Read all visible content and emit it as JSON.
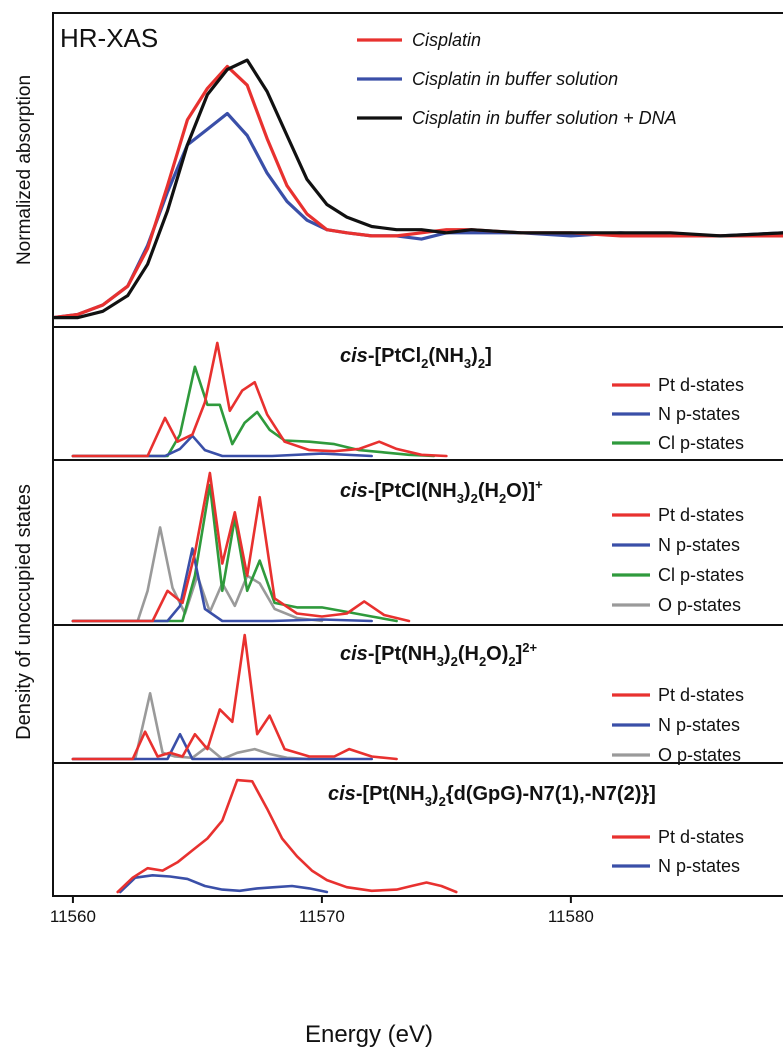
{
  "chart_data": [
    {
      "type": "line",
      "panel": "top",
      "title": "HR-XAS",
      "ylabel": "Normalized absorption",
      "xlim": [
        11559.2,
        11588.6
      ],
      "ylim": [
        0,
        1.0
      ],
      "legend_position": "top-right",
      "series": [
        {
          "name": "Cisplatin",
          "color": "#e8312f",
          "italic": true,
          "x": [
            11559.2,
            11560.2,
            11561.2,
            11562.2,
            11563.0,
            11563.8,
            11564.6,
            11565.4,
            11566.2,
            11567.0,
            11567.8,
            11568.6,
            11569.4,
            11570.2,
            11571.0,
            11572.0,
            11573.0,
            11574.0,
            11575.0,
            11576.0,
            11578.0,
            11580.0,
            11582.0,
            11584.0,
            11586.0,
            11588.6
          ],
          "y": [
            0.03,
            0.04,
            0.07,
            0.13,
            0.25,
            0.45,
            0.66,
            0.76,
            0.83,
            0.77,
            0.6,
            0.45,
            0.36,
            0.31,
            0.3,
            0.29,
            0.29,
            0.3,
            0.31,
            0.31,
            0.3,
            0.3,
            0.29,
            0.29,
            0.29,
            0.29
          ]
        },
        {
          "name": "Cisplatin in buffer solution",
          "color": "#3a4fa8",
          "italic": true,
          "x": [
            11559.2,
            11560.2,
            11561.2,
            11562.2,
            11563.0,
            11563.8,
            11564.6,
            11565.4,
            11566.2,
            11567.0,
            11567.8,
            11568.6,
            11569.4,
            11570.2,
            11571.0,
            11572.0,
            11573.0,
            11574.0,
            11575.0,
            11576.0,
            11578.0,
            11580.0,
            11582.0,
            11584.0,
            11586.0,
            11588.6
          ],
          "y": [
            0.03,
            0.04,
            0.07,
            0.13,
            0.26,
            0.43,
            0.58,
            0.63,
            0.68,
            0.61,
            0.49,
            0.4,
            0.34,
            0.31,
            0.3,
            0.29,
            0.29,
            0.28,
            0.3,
            0.3,
            0.3,
            0.29,
            0.3,
            0.29,
            0.29,
            0.3
          ]
        },
        {
          "name": "Cisplatin in buffer solution + DNA",
          "color": "#111111",
          "italic": true,
          "x": [
            11559.2,
            11560.2,
            11561.2,
            11562.2,
            11563.0,
            11563.8,
            11564.6,
            11565.4,
            11566.2,
            11567.0,
            11567.8,
            11568.6,
            11569.4,
            11570.2,
            11571.0,
            11572.0,
            11573.0,
            11574.0,
            11575.0,
            11576.0,
            11578.0,
            11580.0,
            11582.0,
            11584.0,
            11586.0,
            11588.6
          ],
          "y": [
            0.03,
            0.03,
            0.05,
            0.1,
            0.2,
            0.37,
            0.58,
            0.74,
            0.82,
            0.85,
            0.75,
            0.61,
            0.47,
            0.39,
            0.35,
            0.32,
            0.31,
            0.31,
            0.3,
            0.31,
            0.3,
            0.3,
            0.3,
            0.3,
            0.29,
            0.3
          ]
        }
      ]
    },
    {
      "type": "line",
      "panel": "dos-1",
      "title_parts": [
        [
          "cis",
          "i"
        ],
        [
          "-[PtCl",
          ""
        ],
        [
          "2",
          "sub"
        ],
        [
          "(NH",
          ""
        ],
        [
          "3",
          "sub"
        ],
        [
          ")",
          ""
        ],
        [
          "2",
          "sub"
        ],
        [
          "]",
          ""
        ]
      ],
      "xlim": [
        11559.2,
        11588.6
      ],
      "ylim": [
        0,
        1.0
      ],
      "series": [
        {
          "name": "Pt d-states",
          "color": "#e8312f",
          "x": [
            11560,
            11563,
            11563.7,
            11564.2,
            11564.8,
            11565.3,
            11565.8,
            11566.3,
            11566.8,
            11567.3,
            11567.8,
            11568.5,
            11569.5,
            11570.5,
            11571.5,
            11572.3,
            11573.0,
            11574.0,
            11575.0
          ],
          "y": [
            0,
            0,
            0.32,
            0.12,
            0.18,
            0.45,
            0.95,
            0.38,
            0.55,
            0.62,
            0.35,
            0.12,
            0.05,
            0.04,
            0.06,
            0.12,
            0.06,
            0.01,
            0
          ]
        },
        {
          "name": "N p-states",
          "color": "#3a4fa8",
          "x": [
            11560,
            11563.7,
            11564.3,
            11564.8,
            11565.3,
            11566.0,
            11568.0,
            11570.0,
            11572.0
          ],
          "y": [
            0,
            0,
            0.06,
            0.17,
            0.05,
            0.0,
            0.0,
            0.02,
            0
          ]
        },
        {
          "name": "Cl p-states",
          "color": "#2f9a3c",
          "x": [
            11560,
            11563.8,
            11564.3,
            11564.9,
            11565.4,
            11565.9,
            11566.4,
            11566.9,
            11567.4,
            11567.9,
            11568.5,
            11569.5,
            11570.5,
            11571.5,
            11572.5,
            11573.5,
            11574.5
          ],
          "y": [
            0,
            0,
            0.18,
            0.75,
            0.43,
            0.43,
            0.1,
            0.28,
            0.37,
            0.22,
            0.13,
            0.12,
            0.1,
            0.05,
            0.03,
            0.01,
            0
          ]
        }
      ]
    },
    {
      "type": "line",
      "panel": "dos-2",
      "title_parts": [
        [
          "cis",
          "i"
        ],
        [
          "-[PtCl(NH",
          ""
        ],
        [
          "3",
          "sub"
        ],
        [
          ")",
          ""
        ],
        [
          "2",
          "sub"
        ],
        [
          "(H",
          ""
        ],
        [
          "2",
          "sub"
        ],
        [
          "O)]",
          ""
        ],
        [
          "+",
          "sup"
        ]
      ],
      "xlim": [
        11559.2,
        11588.6
      ],
      "ylim": [
        0,
        1.0
      ],
      "series": [
        {
          "name": "Pt d-states",
          "color": "#e8312f",
          "x": [
            11560,
            11563.2,
            11563.8,
            11564.4,
            11564.9,
            11565.5,
            11566.0,
            11566.5,
            11567.0,
            11567.5,
            11568.1,
            11569.0,
            11570.0,
            11571.0,
            11571.7,
            11572.5,
            11573.5
          ],
          "y": [
            0,
            0,
            0.2,
            0.12,
            0.45,
            0.98,
            0.38,
            0.72,
            0.3,
            0.82,
            0.15,
            0.05,
            0.03,
            0.05,
            0.13,
            0.04,
            0
          ]
        },
        {
          "name": "N p-states",
          "color": "#3a4fa8",
          "x": [
            11560,
            11563.8,
            11564.3,
            11564.8,
            11565.3,
            11566.0,
            11568.0,
            11570.0,
            11572.0
          ],
          "y": [
            0,
            0,
            0.1,
            0.48,
            0.08,
            0.0,
            0.0,
            0.01,
            0
          ]
        },
        {
          "name": "Cl p-states",
          "color": "#2f9a3c",
          "x": [
            11560,
            11564.4,
            11564.9,
            11565.5,
            11566.0,
            11566.5,
            11567.0,
            11567.5,
            11568.1,
            11569.0,
            11570.0,
            11571.0,
            11572.0,
            11573.0
          ],
          "y": [
            0,
            0,
            0.3,
            0.9,
            0.2,
            0.68,
            0.2,
            0.4,
            0.12,
            0.09,
            0.09,
            0.06,
            0.03,
            0
          ]
        },
        {
          "name": "O p-states",
          "color": "#9a9a9a",
          "x": [
            11560,
            11562.6,
            11563.0,
            11563.5,
            11564.0,
            11564.5,
            11565.0,
            11565.5,
            11566.0,
            11566.5,
            11567.0,
            11567.5,
            11568.1,
            11569.0,
            11570.0
          ],
          "y": [
            0,
            0,
            0.2,
            0.62,
            0.22,
            0.05,
            0.3,
            0.06,
            0.25,
            0.1,
            0.3,
            0.25,
            0.08,
            0.02,
            0
          ]
        }
      ]
    },
    {
      "type": "line",
      "panel": "dos-3",
      "title_parts": [
        [
          "cis",
          "i"
        ],
        [
          "-[Pt(NH",
          ""
        ],
        [
          "3",
          "sub"
        ],
        [
          ")",
          ""
        ],
        [
          "2",
          "sub"
        ],
        [
          "(H",
          ""
        ],
        [
          "2",
          "sub"
        ],
        [
          "O)",
          ""
        ],
        [
          "2",
          "sub"
        ],
        [
          "]",
          ""
        ],
        [
          "2+",
          "sup"
        ]
      ],
      "xlim": [
        11559.2,
        11588.6
      ],
      "ylim": [
        0,
        1.0
      ],
      "series": [
        {
          "name": "Pt d-states",
          "color": "#e8312f",
          "x": [
            11560,
            11562.4,
            11562.9,
            11563.4,
            11563.9,
            11564.4,
            11564.9,
            11565.4,
            11565.9,
            11566.4,
            11566.9,
            11567.4,
            11567.9,
            11568.5,
            11569.5,
            11570.5,
            11571.1,
            11572.0,
            11573.0
          ],
          "y": [
            0,
            0,
            0.22,
            0.02,
            0.05,
            0.02,
            0.2,
            0.08,
            0.4,
            0.3,
            1.0,
            0.2,
            0.35,
            0.08,
            0.02,
            0.02,
            0.08,
            0.02,
            0
          ]
        },
        {
          "name": "N p-states",
          "color": "#3a4fa8",
          "x": [
            11560,
            11563.8,
            11564.3,
            11564.8,
            11565.3,
            11567.0,
            11570.0,
            11572.0
          ],
          "y": [
            0,
            0,
            0.2,
            0.0,
            0.0,
            0.0,
            0.0,
            0
          ]
        },
        {
          "name": "O p-states",
          "color": "#9a9a9a",
          "x": [
            11560,
            11562.5,
            11563.1,
            11563.6,
            11564.1,
            11564.8,
            11565.4,
            11566.0,
            11566.6,
            11567.3,
            11567.9,
            11568.6,
            11569.5
          ],
          "y": [
            0,
            0,
            0.53,
            0.05,
            0.02,
            0.01,
            0.1,
            0.0,
            0.05,
            0.08,
            0.04,
            0.01,
            0
          ]
        }
      ]
    },
    {
      "type": "line",
      "panel": "dos-4",
      "title_parts": [
        [
          "cis",
          "i"
        ],
        [
          "-[Pt(NH",
          ""
        ],
        [
          "3",
          "sub"
        ],
        [
          ")",
          ""
        ],
        [
          "2",
          "sub"
        ],
        [
          "{d(GpG)-N7(1),-N7(2)}]",
          ""
        ]
      ],
      "xlabel": "Energy (eV)",
      "xticks": [
        11560,
        11570,
        11580
      ],
      "xlim": [
        11559.2,
        11588.6
      ],
      "ylim": [
        0,
        1.0
      ],
      "series": [
        {
          "name": "Pt d-states",
          "color": "#e8312f",
          "x": [
            11561.8,
            11562.4,
            11563.0,
            11563.6,
            11564.2,
            11564.8,
            11565.4,
            11566.0,
            11566.6,
            11567.2,
            11567.8,
            11568.4,
            11569.0,
            11569.6,
            11570.2,
            11571.0,
            11572.0,
            11573.0,
            11573.6,
            11574.2,
            11574.8,
            11575.4
          ],
          "y": [
            0,
            0.12,
            0.2,
            0.18,
            0.25,
            0.35,
            0.45,
            0.6,
            0.94,
            0.93,
            0.7,
            0.45,
            0.3,
            0.18,
            0.1,
            0.04,
            0.01,
            0.02,
            0.05,
            0.08,
            0.05,
            0
          ]
        },
        {
          "name": "N p-states",
          "color": "#3a4fa8",
          "x": [
            11561.9,
            11562.5,
            11563.2,
            11563.9,
            11564.6,
            11565.3,
            11566.0,
            11566.7,
            11567.4,
            11568.1,
            11568.8,
            11569.5,
            11570.2
          ],
          "y": [
            0,
            0.12,
            0.14,
            0.13,
            0.11,
            0.05,
            0.02,
            0.01,
            0.03,
            0.04,
            0.05,
            0.03,
            0
          ]
        }
      ]
    }
  ],
  "shared_ylabel": "Density of unoccupied states"
}
